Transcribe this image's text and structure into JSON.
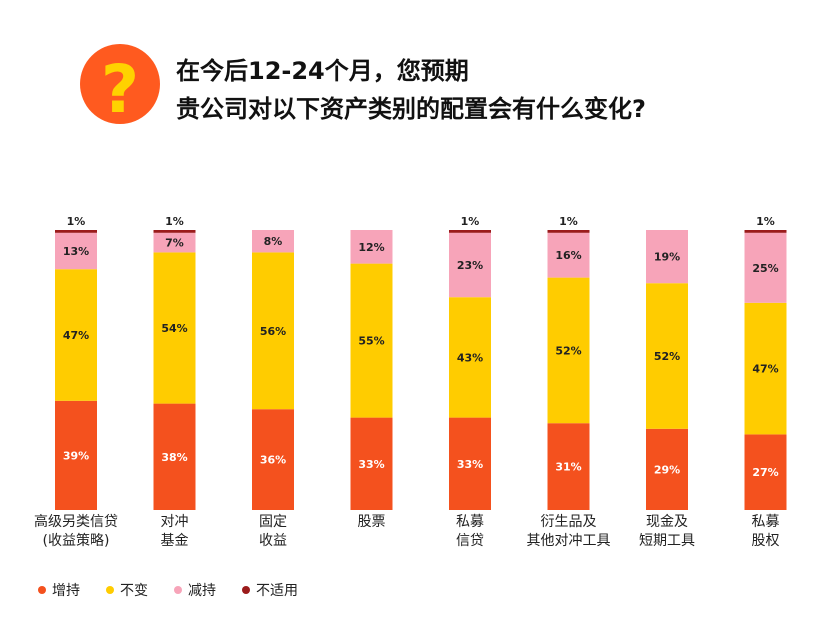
{
  "title": {
    "line1": "在今后12-24个月，您预期",
    "line2": "贵公司对以下资产类别的配置会有什么变化?"
  },
  "icon": {
    "name": "question-mark-icon",
    "glyph": "?",
    "color": "#ff5a1f",
    "glyph_color": "#ffd200"
  },
  "chart_data": {
    "type": "bar",
    "stacked": true,
    "percent": true,
    "categories": [
      [
        "高级另类信贷",
        "(收益策略)"
      ],
      [
        "对冲",
        "基金"
      ],
      [
        "固定",
        "收益"
      ],
      [
        "股票"
      ],
      [
        "私募",
        "信贷"
      ],
      [
        "衍生品及",
        "其他对冲工具"
      ],
      [
        "现金及",
        "短期工具"
      ],
      [
        "私募",
        "股权"
      ]
    ],
    "series": [
      {
        "name": "增持",
        "color": "#f4511e",
        "label_color": "#ffffff",
        "values": [
          39,
          38,
          36,
          33,
          33,
          31,
          29,
          27
        ]
      },
      {
        "name": "不变",
        "color": "#ffcc00",
        "label_color": "#222222",
        "values": [
          47,
          54,
          56,
          55,
          43,
          52,
          52,
          47
        ]
      },
      {
        "name": "减持",
        "color": "#f7a4b9",
        "label_color": "#222222",
        "values": [
          13,
          7,
          8,
          12,
          23,
          16,
          19,
          25
        ]
      },
      {
        "name": "不适用",
        "color": "#9b1b1b",
        "label_color": "#222222",
        "values": [
          1,
          1,
          0,
          0,
          1,
          1,
          0,
          1
        ]
      }
    ],
    "legend_position": "bottom-left",
    "grid": false
  }
}
